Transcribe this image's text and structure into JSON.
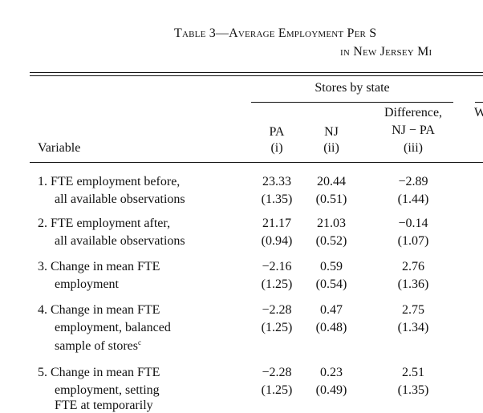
{
  "table": {
    "title_line1": "Table 3—Average Employment Per S",
    "title_line2": "in New Jersey Mi",
    "group_header": "Stores by state",
    "partial_header": "W",
    "columns": [
      {
        "name": "PA",
        "sub": "(i)"
      },
      {
        "name": "NJ",
        "sub": "(ii)"
      },
      {
        "name": "Difference,",
        "name2": "NJ − PA",
        "sub": "(iii)"
      }
    ],
    "variable_header": "Variable",
    "rows": [
      {
        "label_lines": [
          "1. FTE employment before,",
          "all available observations"
        ],
        "pa": "23.33",
        "pa_se": "(1.35)",
        "nj": "20.44",
        "nj_se": "(0.51)",
        "diff": "−2.89",
        "diff_se": "(1.44)"
      },
      {
        "label_lines": [
          "2. FTE employment after,",
          "all available observations"
        ],
        "pa": "21.17",
        "pa_se": "(0.94)",
        "nj": "21.03",
        "nj_se": "(0.52)",
        "diff": "−0.14",
        "diff_se": "(1.07)"
      },
      {
        "label_lines": [
          "3. Change in mean FTE",
          "employment"
        ],
        "pa": "−2.16",
        "pa_se": "(1.25)",
        "nj": "0.59",
        "nj_se": "(0.54)",
        "diff": "2.76",
        "diff_se": "(1.36)"
      },
      {
        "label_lines": [
          "4. Change in mean FTE",
          "employment, balanced",
          "sample of stores"
        ],
        "label_sup": "c",
        "pa": "−2.28",
        "pa_se": "(1.25)",
        "nj": "0.47",
        "nj_se": "(0.48)",
        "diff": "2.75",
        "diff_se": "(1.34)"
      },
      {
        "label_lines": [
          "5. Change in mean FTE",
          "employment, setting",
          "FTE at temporarily"
        ],
        "pa": "−2.28",
        "pa_se": "(1.25)",
        "nj": "0.23",
        "nj_se": "(0.49)",
        "diff": "2.51",
        "diff_se": "(1.35)"
      }
    ]
  }
}
